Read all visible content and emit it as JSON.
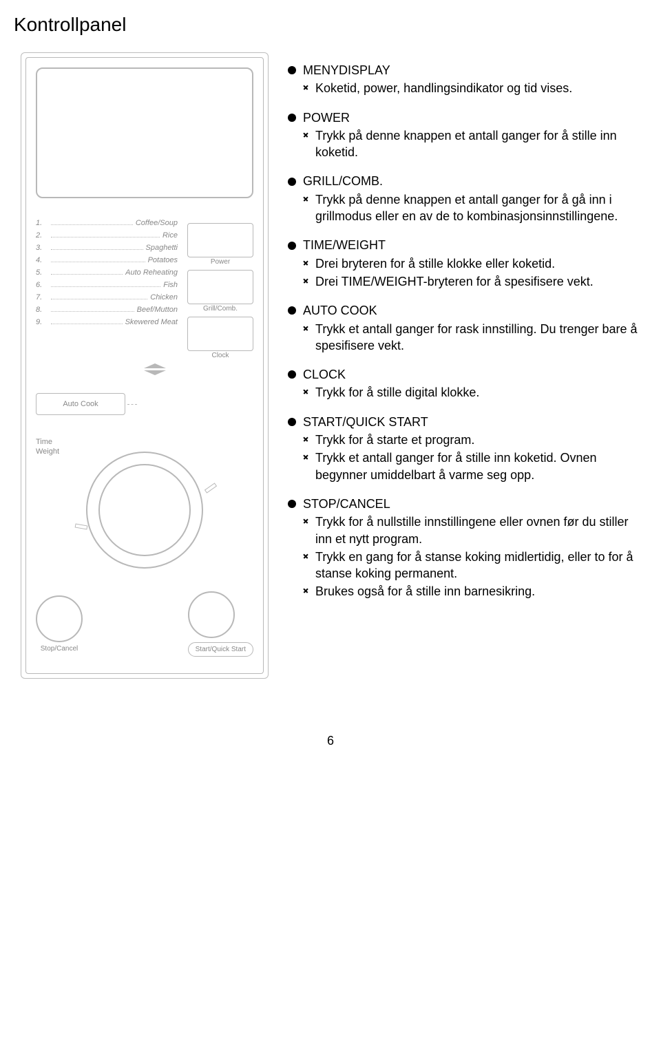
{
  "title": "Kontrollpanel",
  "page_number": "6",
  "panel": {
    "menu_items": [
      {
        "num": "1.",
        "label": "Coffee/Soup"
      },
      {
        "num": "2.",
        "label": "Rice"
      },
      {
        "num": "3.",
        "label": "Spaghetti"
      },
      {
        "num": "4.",
        "label": "Potatoes"
      },
      {
        "num": "5.",
        "label": "Auto Reheating"
      },
      {
        "num": "6.",
        "label": "Fish"
      },
      {
        "num": "7.",
        "label": "Chicken"
      },
      {
        "num": "8.",
        "label": "Beef/Mutton"
      },
      {
        "num": "9.",
        "label": "Skewered Meat"
      }
    ],
    "btn_power": "Power",
    "btn_grill": "Grill/Comb.",
    "btn_clock": "Clock",
    "autocook": "Auto Cook",
    "time_weight_1": "Time",
    "time_weight_2": "Weight",
    "stop_cancel": "Stop/Cancel",
    "start_quick": "Start/Quick Start"
  },
  "descriptions": [
    {
      "head": "MENYDISPLAY",
      "subs": [
        "Koketid, power, handlingsindikator og tid vises."
      ]
    },
    {
      "head": "POWER",
      "subs": [
        "Trykk på denne knappen et antall ganger for å stille inn koketid."
      ]
    },
    {
      "head": "GRILL/COMB.",
      "subs": [
        "Trykk på denne knappen et antall ganger for å gå inn i grillmodus eller en av de to kombinasjonsinnstillingene."
      ]
    },
    {
      "head": "TIME/WEIGHT",
      "subs": [
        "Drei bryteren for å stille klokke eller koketid.",
        "Drei TIME/WEIGHT-bryteren for å spesifisere vekt."
      ]
    },
    {
      "head": "AUTO COOK",
      "subs": [
        "Trykk et antall ganger for rask innstilling. Du trenger bare å spesifisere vekt."
      ]
    },
    {
      "head": "CLOCK",
      "subs": [
        "Trykk for å stille digital klokke."
      ]
    },
    {
      "head": "START/QUICK START",
      "subs": [
        "Trykk for å starte et program.",
        "Trykk et antall ganger for å stille inn koketid. Ovnen begynner umiddelbart å varme seg opp."
      ]
    },
    {
      "head": "STOP/CANCEL",
      "subs": [
        "Trykk for å nullstille innstillingene eller ovnen før du stiller inn et nytt program.",
        "Trykk en gang for å stanse koking midlertidig, eller to for å stanse koking permanent.",
        "Brukes også for å stille inn barnesikring."
      ]
    }
  ]
}
